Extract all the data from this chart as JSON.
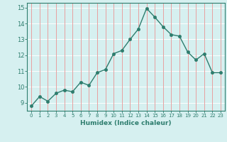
{
  "x": [
    0,
    1,
    2,
    3,
    4,
    5,
    6,
    7,
    8,
    9,
    10,
    11,
    12,
    13,
    14,
    15,
    16,
    17,
    18,
    19,
    20,
    21,
    22,
    23
  ],
  "y": [
    8.8,
    9.4,
    9.1,
    9.6,
    9.8,
    9.7,
    10.3,
    10.1,
    10.9,
    11.1,
    12.1,
    12.3,
    13.0,
    13.65,
    14.95,
    14.4,
    13.8,
    13.3,
    13.2,
    12.2,
    11.7,
    12.1,
    10.9,
    10.9
  ],
  "xlabel": "Humidex (Indice chaleur)",
  "xlim": [
    -0.5,
    23.5
  ],
  "ylim": [
    8.5,
    15.3
  ],
  "yticks": [
    9,
    10,
    11,
    12,
    13,
    14,
    15
  ],
  "xticks": [
    0,
    1,
    2,
    3,
    4,
    5,
    6,
    7,
    8,
    9,
    10,
    11,
    12,
    13,
    14,
    15,
    16,
    17,
    18,
    19,
    20,
    21,
    22,
    23
  ],
  "line_color": "#2e7d6e",
  "bg_color": "#d6f0f0",
  "grid_color_h": "#ffffff",
  "grid_color_v": "#e8a0a0",
  "axis_color": "#2e7d6e",
  "tick_color": "#2e7d6e",
  "label_color": "#2e7d6e",
  "line_width": 1.0,
  "marker_size": 3
}
